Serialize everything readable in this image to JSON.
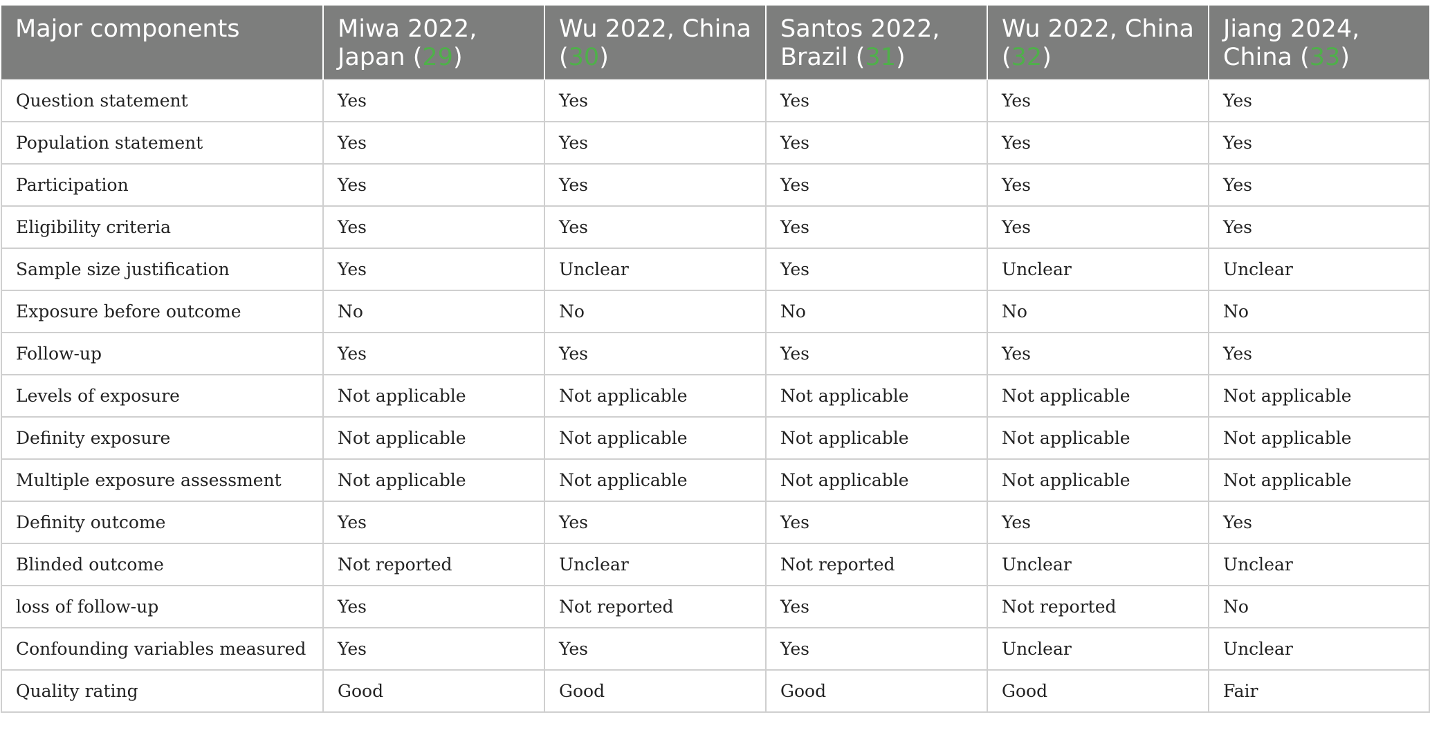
{
  "table": {
    "headers": [
      {
        "text": "Major components",
        "ref": ""
      },
      {
        "text": "Miwa 2022, Japan (",
        "ref": "29",
        "after": ")"
      },
      {
        "text": "Wu 2022, China (",
        "ref": "30",
        "after": ")"
      },
      {
        "text": "Santos 2022, Brazil (",
        "ref": "31",
        "after": ")"
      },
      {
        "text": "Wu 2022, China (",
        "ref": "32",
        "after": ")"
      },
      {
        "text": "Jiang 2024, China (",
        "ref": "33",
        "after": ")"
      }
    ],
    "colors": {
      "header_bg": "#7d7e7d",
      "header_text": "#ffffff",
      "ref_link": "#4fb04a",
      "grid": "#cfcfcf"
    },
    "rows": [
      [
        "Question statement",
        "Yes",
        "Yes",
        "Yes",
        "Yes",
        "Yes"
      ],
      [
        "Population statement",
        "Yes",
        "Yes",
        "Yes",
        "Yes",
        "Yes"
      ],
      [
        "Participation",
        "Yes",
        "Yes",
        "Yes",
        "Yes",
        "Yes"
      ],
      [
        "Eligibility criteria",
        "Yes",
        "Yes",
        "Yes",
        "Yes",
        "Yes"
      ],
      [
        "Sample size justification",
        "Yes",
        "Unclear",
        "Yes",
        "Unclear",
        "Unclear"
      ],
      [
        "Exposure before outcome",
        "No",
        "No",
        "No",
        "No",
        "No"
      ],
      [
        "Follow-up",
        "Yes",
        "Yes",
        "Yes",
        "Yes",
        "Yes"
      ],
      [
        "Levels of exposure",
        "Not applicable",
        "Not applicable",
        "Not applicable",
        "Not applicable",
        "Not applicable"
      ],
      [
        "Definity exposure",
        "Not applicable",
        "Not applicable",
        "Not applicable",
        "Not applicable",
        "Not applicable"
      ],
      [
        "Multiple exposure assessment",
        "Not applicable",
        "Not applicable",
        "Not applicable",
        "Not applicable",
        "Not applicable"
      ],
      [
        "Definity outcome",
        "Yes",
        "Yes",
        "Yes",
        "Yes",
        "Yes"
      ],
      [
        "Blinded outcome",
        "Not reported",
        "Unclear",
        "Not reported",
        "Unclear",
        "Unclear"
      ],
      [
        "loss of follow-up",
        "Yes",
        "Not reported",
        "Yes",
        "Not reported",
        "No"
      ],
      [
        "Confounding variables measured",
        "Yes",
        "Yes",
        "Yes",
        "Unclear",
        "Unclear"
      ],
      [
        "Quality rating",
        "Good",
        "Good",
        "Good",
        "Good",
        "Fair"
      ]
    ]
  }
}
